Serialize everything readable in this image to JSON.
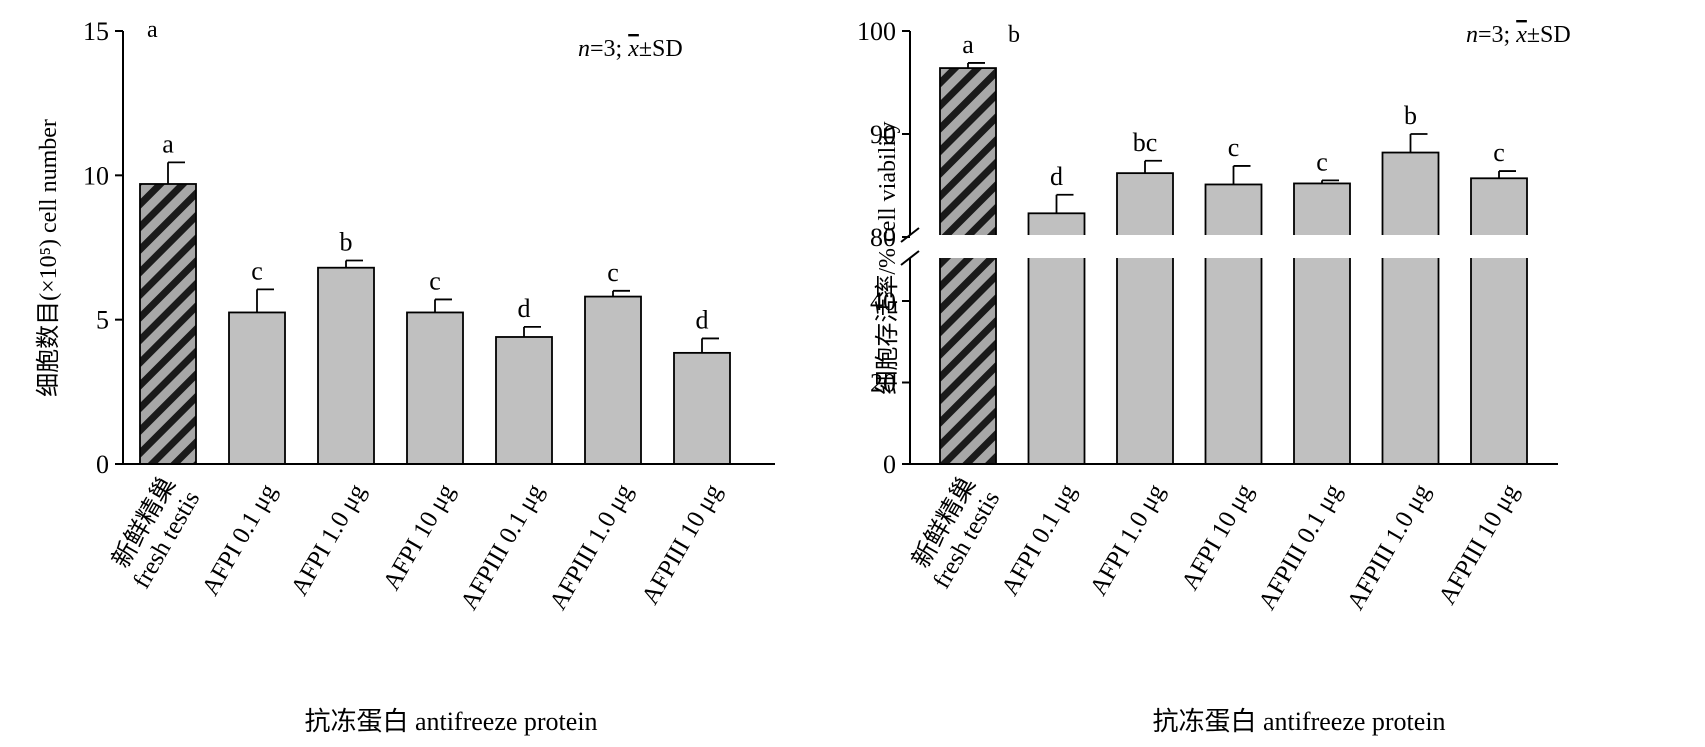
{
  "chart_data": [
    {
      "type": "bar",
      "panel_label": "a",
      "annotation": "n=3; x̄±SD",
      "ylabel": "细胞数目(×10⁵) cell number",
      "xlabel": "抗冻蛋白 antifreeze protein",
      "ylim": [
        0,
        15
      ],
      "yticks": [
        0,
        5,
        10,
        15
      ],
      "categories": [
        {
          "line1": "新鲜精巢",
          "line2": "fresh testis"
        },
        {
          "line1": "AFPI 0.1 μg",
          "line2": ""
        },
        {
          "line1": "AFPI 1.0 μg",
          "line2": ""
        },
        {
          "line1": "AFPI 10 μg",
          "line2": ""
        },
        {
          "line1": "AFPIII 0.1 μg",
          "line2": ""
        },
        {
          "line1": "AFPIII 1.0 μg",
          "line2": ""
        },
        {
          "line1": "AFPIII 10 μg",
          "line2": ""
        }
      ],
      "values": [
        9.7,
        5.25,
        6.8,
        5.25,
        4.4,
        5.8,
        3.85
      ],
      "errors": [
        0.75,
        0.8,
        0.25,
        0.45,
        0.35,
        0.2,
        0.5
      ],
      "letters": [
        "a",
        "c",
        "b",
        "c",
        "d",
        "c",
        "d"
      ],
      "patterns": [
        "hatched",
        "plain",
        "plain",
        "plain",
        "plain",
        "plain",
        "plain"
      ],
      "axis_break": null,
      "grid": false
    },
    {
      "type": "bar",
      "panel_label": "b",
      "annotation": "n=3; x̄±SD",
      "ylabel": "细胞存活率/% cell viability",
      "xlabel": "抗冻蛋白 antifreeze protein",
      "ylim": [
        0,
        100
      ],
      "yticks": [
        0,
        20,
        40,
        80,
        90,
        100
      ],
      "categories": [
        {
          "line1": "新鲜精巢",
          "line2": "fresh testis"
        },
        {
          "line1": "AFPI 0.1 μg",
          "line2": ""
        },
        {
          "line1": "AFPI 1.0 μg",
          "line2": ""
        },
        {
          "line1": "AFPI 10 μg",
          "line2": ""
        },
        {
          "line1": "AFPIII 0.1 μg",
          "line2": ""
        },
        {
          "line1": "AFPIII 1.0 μg",
          "line2": ""
        },
        {
          "line1": "AFPIII 10 μg",
          "line2": ""
        }
      ],
      "values": [
        96.4,
        82.3,
        86.2,
        85.1,
        85.2,
        88.2,
        85.7
      ],
      "errors": [
        0.5,
        1.8,
        1.2,
        1.8,
        0.3,
        1.8,
        0.7
      ],
      "letters": [
        "a",
        "d",
        "bc",
        "c",
        "c",
        "b",
        "c"
      ],
      "patterns": [
        "hatched",
        "plain",
        "plain",
        "plain",
        "plain",
        "plain",
        "plain"
      ],
      "axis_break": {
        "lower_max": 50,
        "upper_min": 80
      },
      "grid": false
    }
  ],
  "colors": {
    "bar_fill": "#c0c0c0",
    "hatch_stripe": "#1a1a1a",
    "hatch_bg": "#a8a8a8",
    "axis": "#000000"
  }
}
